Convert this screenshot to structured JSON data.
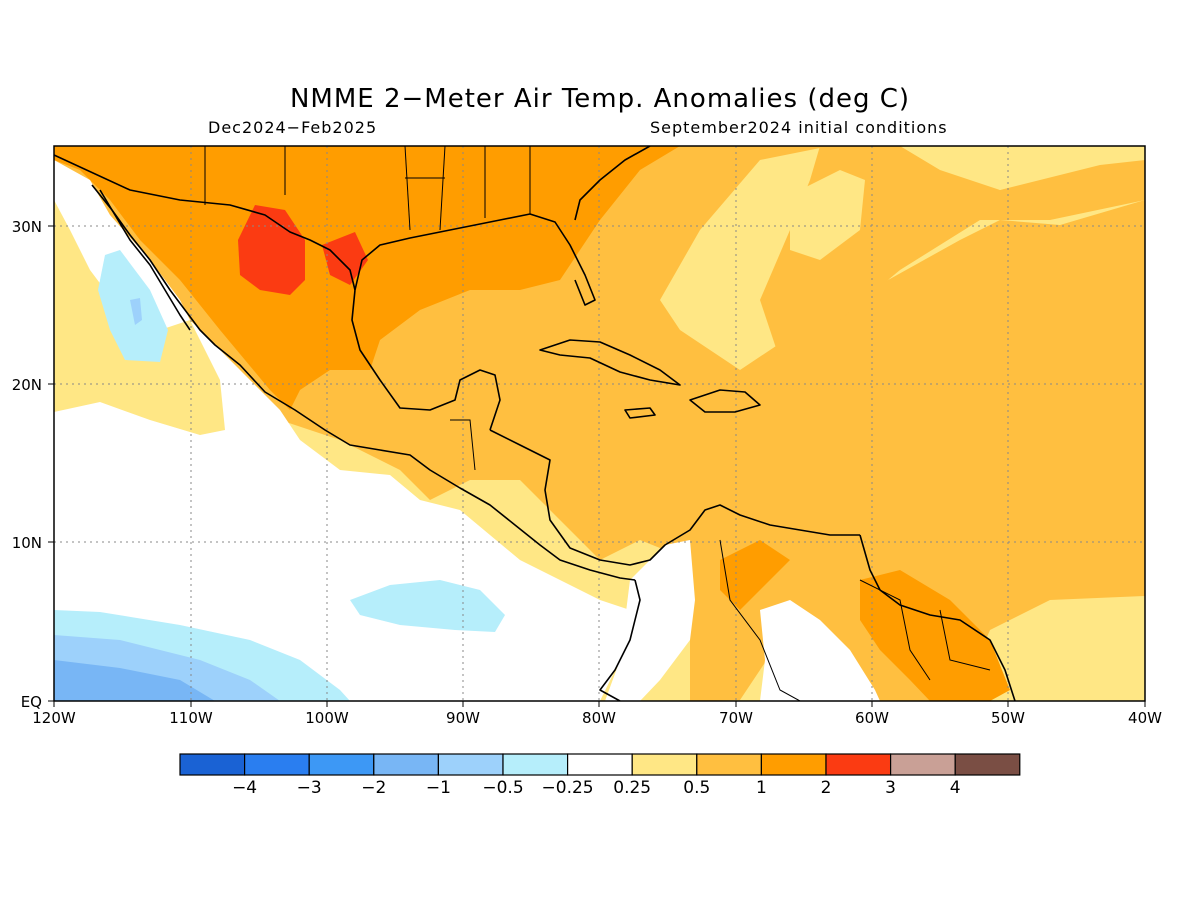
{
  "title": "NMME 2−Meter Air Temp. Anomalies (deg C)",
  "subtitle_left": "Dec2024−Feb2025",
  "subtitle_right": "September2024 initial conditions",
  "map": {
    "lon_range": [
      -120,
      -40
    ],
    "lat_range": [
      0,
      35
    ],
    "lon_ticks": [
      "120W",
      "110W",
      "100W",
      "90W",
      "80W",
      "70W",
      "60W",
      "50W",
      "40W"
    ],
    "lat_ticks": [
      "EQ",
      "10N",
      "20N",
      "30N"
    ],
    "grid": "dotted"
  },
  "colorbar": {
    "colors": [
      "#1a62d4",
      "#2a7ef0",
      "#3d98f5",
      "#78b6f5",
      "#9dd1fb",
      "#b6eefb",
      "#ffffff",
      "#ffe785",
      "#ffbf40",
      "#ff9d00",
      "#fb3b12",
      "#c9a096",
      "#7a4e44"
    ],
    "labels": [
      "−4",
      "−3",
      "−2",
      "−1",
      "−0.5",
      "−0.25",
      "0.25",
      "0.5",
      "1",
      "2",
      "3",
      "4"
    ]
  }
}
